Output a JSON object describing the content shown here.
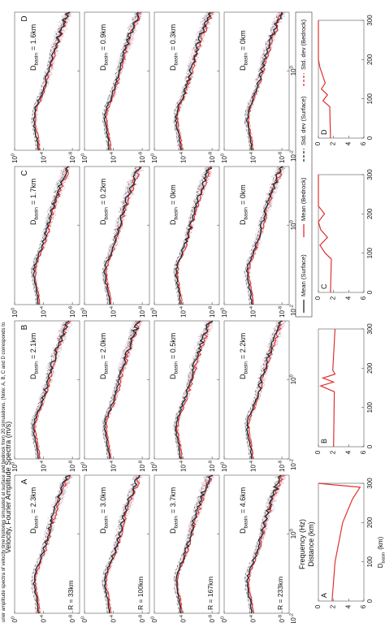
{
  "caption": "urier amplitude spectra of velocity time histories simulated at surface and bedrock from 20 simulations. (Note: A, B, C and D corresponds to",
  "y_axis_title": "Velocity, Fourier Amplitude Spectra (m/s)",
  "x_axis_title": "Frequency (Hz)",
  "basin_symbol": "D",
  "basin_subscript": "basin",
  "amp_lim": [
    1,
    1e-09
  ],
  "amp_ticks": [
    {
      "value": 1,
      "base": "10",
      "exp": "0"
    },
    {
      "value": 0.0001,
      "base": "10",
      "exp": "-4"
    },
    {
      "value": 1e-08,
      "base": "10",
      "exp": "-8"
    }
  ],
  "freq_lim": [
    0.01,
    30
  ],
  "freq_ticks": [
    {
      "value": 0.01,
      "base": "10",
      "exp": "-2"
    },
    {
      "value": 1,
      "base": "10",
      "exp": "0"
    }
  ],
  "columns": [
    {
      "label": "A",
      "rows": [
        {
          "r": "R = 33km",
          "depth": "= 2.3km"
        },
        {
          "r": "R = 100km",
          "depth": "= 3.0km"
        },
        {
          "r": "R = 167km",
          "depth": "= 3.7km"
        },
        {
          "r": "R = 233km",
          "depth": "= 4.6km"
        }
      ]
    },
    {
      "label": "B",
      "rows": [
        {
          "depth": "= 2.1km"
        },
        {
          "depth": "= 2.0km"
        },
        {
          "depth": "= 0.5km"
        },
        {
          "depth": "= 2.2km"
        }
      ]
    },
    {
      "label": "C",
      "rows": [
        {
          "depth": "= 1.7km"
        },
        {
          "depth": "= 0.2km"
        },
        {
          "depth": "= 0km"
        },
        {
          "depth": "= 0km"
        }
      ]
    },
    {
      "label": "D",
      "rows": [
        {
          "depth": "= 1.6km"
        },
        {
          "depth": "= 0.9km"
        },
        {
          "depth": "= 0.3km"
        },
        {
          "depth": "= 0km"
        }
      ]
    }
  ],
  "legend": [
    {
      "name": "Mean (Surface)",
      "color": "#1a2e2e",
      "dashed": false
    },
    {
      "name": "Mean (Bedrock)",
      "color": "#e03030",
      "dashed": false
    },
    {
      "name": "Std. dev (Surface)",
      "color": "#1a2e2e",
      "dashed": true
    },
    {
      "name": "Std. dev (Bedrock)",
      "color": "#e03030",
      "dashed": true
    }
  ],
  "profiles": {
    "x_title": "Distance (km)",
    "y_title_symbol": "D",
    "y_title_subscript": "basin",
    "y_title_unit": "(km)",
    "distance_lim": [
      0,
      300
    ],
    "distance_ticks": [
      0,
      100,
      200,
      300
    ],
    "depth_lim": [
      0,
      6
    ],
    "depth_ticks": [
      0,
      2,
      4,
      6
    ],
    "color": "#e03030",
    "curves": [
      {
        "label": "A",
        "distance": [
          0,
          100,
          200,
          260,
          290,
          296,
          300
        ],
        "depth": [
          1.8,
          2.2,
          3.2,
          4.5,
          5.5,
          2,
          0
        ]
      },
      {
        "label": "B",
        "distance": [
          0,
          140,
          155,
          165,
          175,
          185,
          195,
          300
        ],
        "depth": [
          2,
          2.1,
          0.3,
          2,
          0.6,
          2.2,
          1.9,
          2.2
        ]
      },
      {
        "label": "C",
        "distance": [
          0,
          85,
          100,
          120,
          140,
          160,
          180,
          200,
          220,
          300
        ],
        "depth": [
          1.6,
          1.7,
          0.9,
          0.2,
          1.2,
          0.3,
          0,
          0.8,
          0,
          0
        ]
      },
      {
        "label": "D",
        "distance": [
          0,
          80,
          95,
          110,
          125,
          140,
          180,
          200,
          300
        ],
        "depth": [
          1.6,
          1.5,
          0.6,
          1.2,
          0.4,
          0.9,
          0.2,
          0,
          0
        ]
      }
    ]
  }
}
